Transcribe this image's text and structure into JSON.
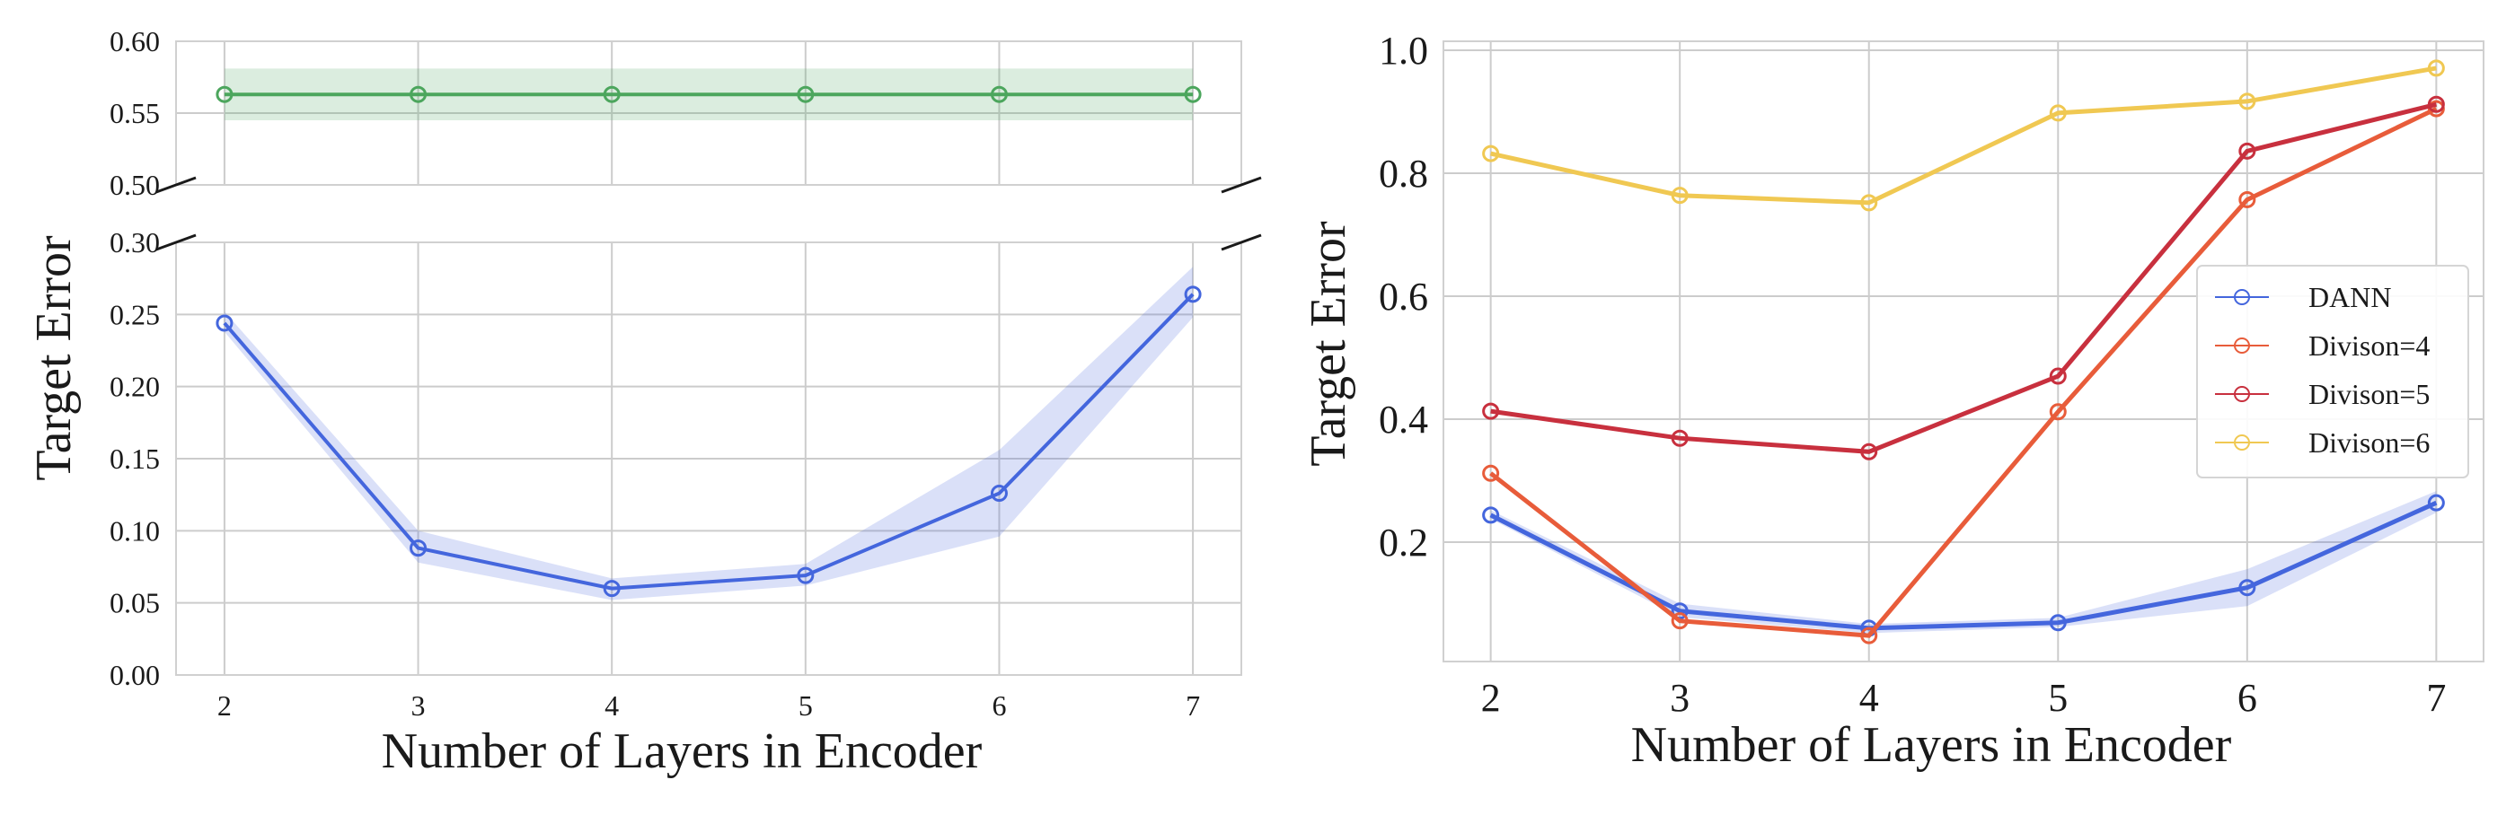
{
  "chart_data": [
    {
      "type": "line",
      "broken_axis": true,
      "xlabel": "Number of Layers in Encoder",
      "ylabel": "Target Error",
      "x": [
        2,
        3,
        4,
        5,
        6,
        7
      ],
      "xlim": [
        1.75,
        7.25
      ],
      "ylim_upper": [
        0.5,
        0.6
      ],
      "ylim_lower": [
        0.0,
        0.3
      ],
      "yticks_upper": [
        "0.50",
        "0.55",
        "0.60"
      ],
      "yticks_lower": [
        "0.00",
        "0.05",
        "0.10",
        "0.15",
        "0.20",
        "0.25",
        "0.30"
      ],
      "xticks": [
        "2",
        "3",
        "4",
        "5",
        "6",
        "7"
      ],
      "grid": true,
      "series": [
        {
          "color": "#4ca65d",
          "values": [
            0.563,
            0.563,
            0.563,
            0.563,
            0.563,
            0.563
          ],
          "lower": [
            0.545,
            0.545,
            0.545,
            0.545,
            0.545,
            0.545
          ],
          "upper": [
            0.581,
            0.581,
            0.581,
            0.581,
            0.581,
            0.581
          ]
        },
        {
          "color": "#4466dd",
          "values": [
            0.244,
            0.088,
            0.06,
            0.069,
            0.126,
            0.264
          ],
          "lower": [
            0.238,
            0.078,
            0.052,
            0.062,
            0.096,
            0.248
          ],
          "upper": [
            0.252,
            0.1,
            0.067,
            0.077,
            0.156,
            0.283
          ]
        }
      ]
    },
    {
      "type": "line",
      "xlabel": "Number of Layers in Encoder",
      "ylabel": "Target Error",
      "x": [
        2,
        3,
        4,
        5,
        6,
        7
      ],
      "xlim": [
        1.75,
        7.25
      ],
      "ylim": [
        0.0,
        1.02
      ],
      "yticks": [
        "0.2",
        "0.4",
        "0.6",
        "0.8",
        "1.0"
      ],
      "xticks": [
        "2",
        "3",
        "4",
        "5",
        "6",
        "7"
      ],
      "grid": true,
      "legend_position": "center-right",
      "series": [
        {
          "name": "DANN",
          "color": "#4466dd",
          "values": [
            0.244,
            0.088,
            0.06,
            0.069,
            0.126,
            0.264
          ],
          "lower": [
            0.238,
            0.078,
            0.052,
            0.062,
            0.096,
            0.248
          ],
          "upper": [
            0.252,
            0.1,
            0.067,
            0.077,
            0.156,
            0.283
          ]
        },
        {
          "name": "Divison=4",
          "color": "#e85c3a",
          "values": [
            0.312,
            0.072,
            0.048,
            0.412,
            0.757,
            0.905
          ]
        },
        {
          "name": "Divison=5",
          "color": "#c8303e",
          "values": [
            0.413,
            0.369,
            0.347,
            0.47,
            0.836,
            0.912
          ]
        },
        {
          "name": "Divison=6",
          "color": "#f0c852",
          "values": [
            0.832,
            0.764,
            0.752,
            0.898,
            0.917,
            0.971
          ]
        }
      ]
    }
  ]
}
